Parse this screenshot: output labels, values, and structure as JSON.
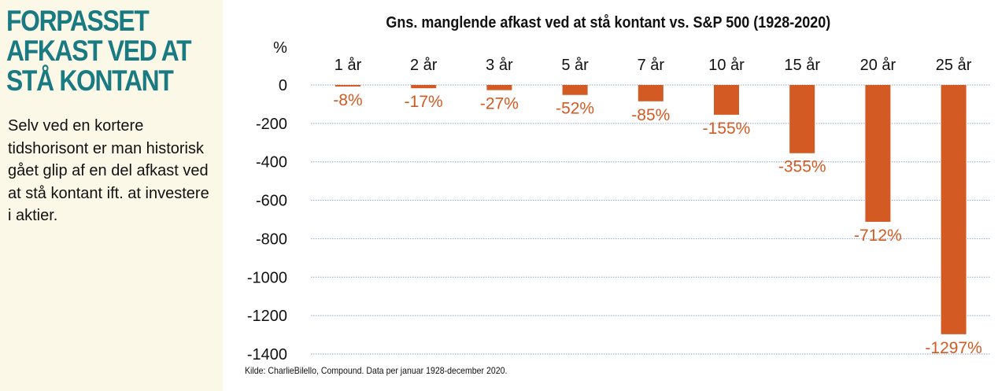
{
  "sidebar": {
    "headline": "FORPASSET\nAFKAST VED AT\nSTÅ KONTANT",
    "body": "Selv ved en kortere tidshorisont er man historisk gået glip af en del afkast ved at stå kontant ift. at investere i aktier."
  },
  "colors": {
    "headline": "#1a7a82",
    "bar": "#d35a22",
    "label": "#d35a22",
    "grid": "#8aa8cc",
    "background": "#fbf8e8"
  },
  "source": "Kilde: CharlieBilello, Compound. Data per januar 1928-december 2020.",
  "chart_data": {
    "type": "bar",
    "title": "Gns. manglende afkast ved at stå kontant vs. S&P 500 (1928-2020)",
    "ylabel": "%",
    "categories": [
      "1 år",
      "2 år",
      "3 år",
      "5 år",
      "7 år",
      "10 år",
      "15 år",
      "20 år",
      "25 år"
    ],
    "values": [
      -8,
      -17,
      -27,
      -52,
      -85,
      -155,
      -355,
      -712,
      -1297
    ],
    "data_labels": [
      "-8%",
      "-17%",
      "-27%",
      "-52%",
      "-85%",
      "-155%",
      "-355%",
      "-712%",
      "-1297%"
    ],
    "yticks": [
      0,
      -200,
      -400,
      -600,
      -800,
      -1000,
      -1200,
      -1400
    ],
    "ylim": [
      -1400,
      0
    ],
    "grid": true,
    "category_axis_position": "top"
  }
}
